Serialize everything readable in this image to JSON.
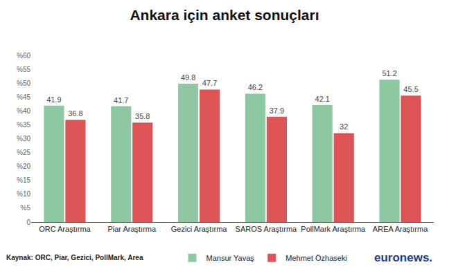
{
  "chart_data": {
    "type": "bar",
    "title": "Ankara için anket sonuçları",
    "categories": [
      "ORC Araştırma",
      "Piar Araştırma",
      "Gezici Araştırma",
      "SAROS Araştırma",
      "PollMark Araştırma",
      "AREA Araştırma"
    ],
    "series": [
      {
        "name": "Mansur Yavaş",
        "color": "#8dc8a3",
        "values": [
          41.9,
          41.7,
          49.8,
          46.2,
          42.1,
          51.2
        ]
      },
      {
        "name": "Mehmet Özhaseki",
        "color": "#dc5454",
        "values": [
          36.8,
          35.8,
          47.7,
          37.9,
          32,
          45.5
        ]
      }
    ],
    "ylim": [
      0,
      60
    ],
    "yticks": [
      0,
      {
        "value": 5,
        "label": "%5"
      },
      {
        "value": 10,
        "label": "%10"
      },
      {
        "value": 15,
        "label": "%15"
      },
      {
        "value": 20,
        "label": "%20"
      },
      {
        "value": 25,
        "label": "%25"
      },
      {
        "value": 30,
        "label": "%30"
      },
      {
        "value": 35,
        "label": "%35"
      },
      {
        "value": 40,
        "label": "%40"
      },
      {
        "value": 45,
        "label": "%45"
      },
      {
        "value": 50,
        "label": "%50"
      },
      {
        "value": 55,
        "label": "%55"
      },
      {
        "value": 60,
        "label": "%60"
      }
    ],
    "grid": false,
    "data_labels": true,
    "legend": "bottom",
    "annotations": [
      "Kaynak: ORC, Piar, Gezici, PollMark, Area",
      "euronews."
    ]
  }
}
